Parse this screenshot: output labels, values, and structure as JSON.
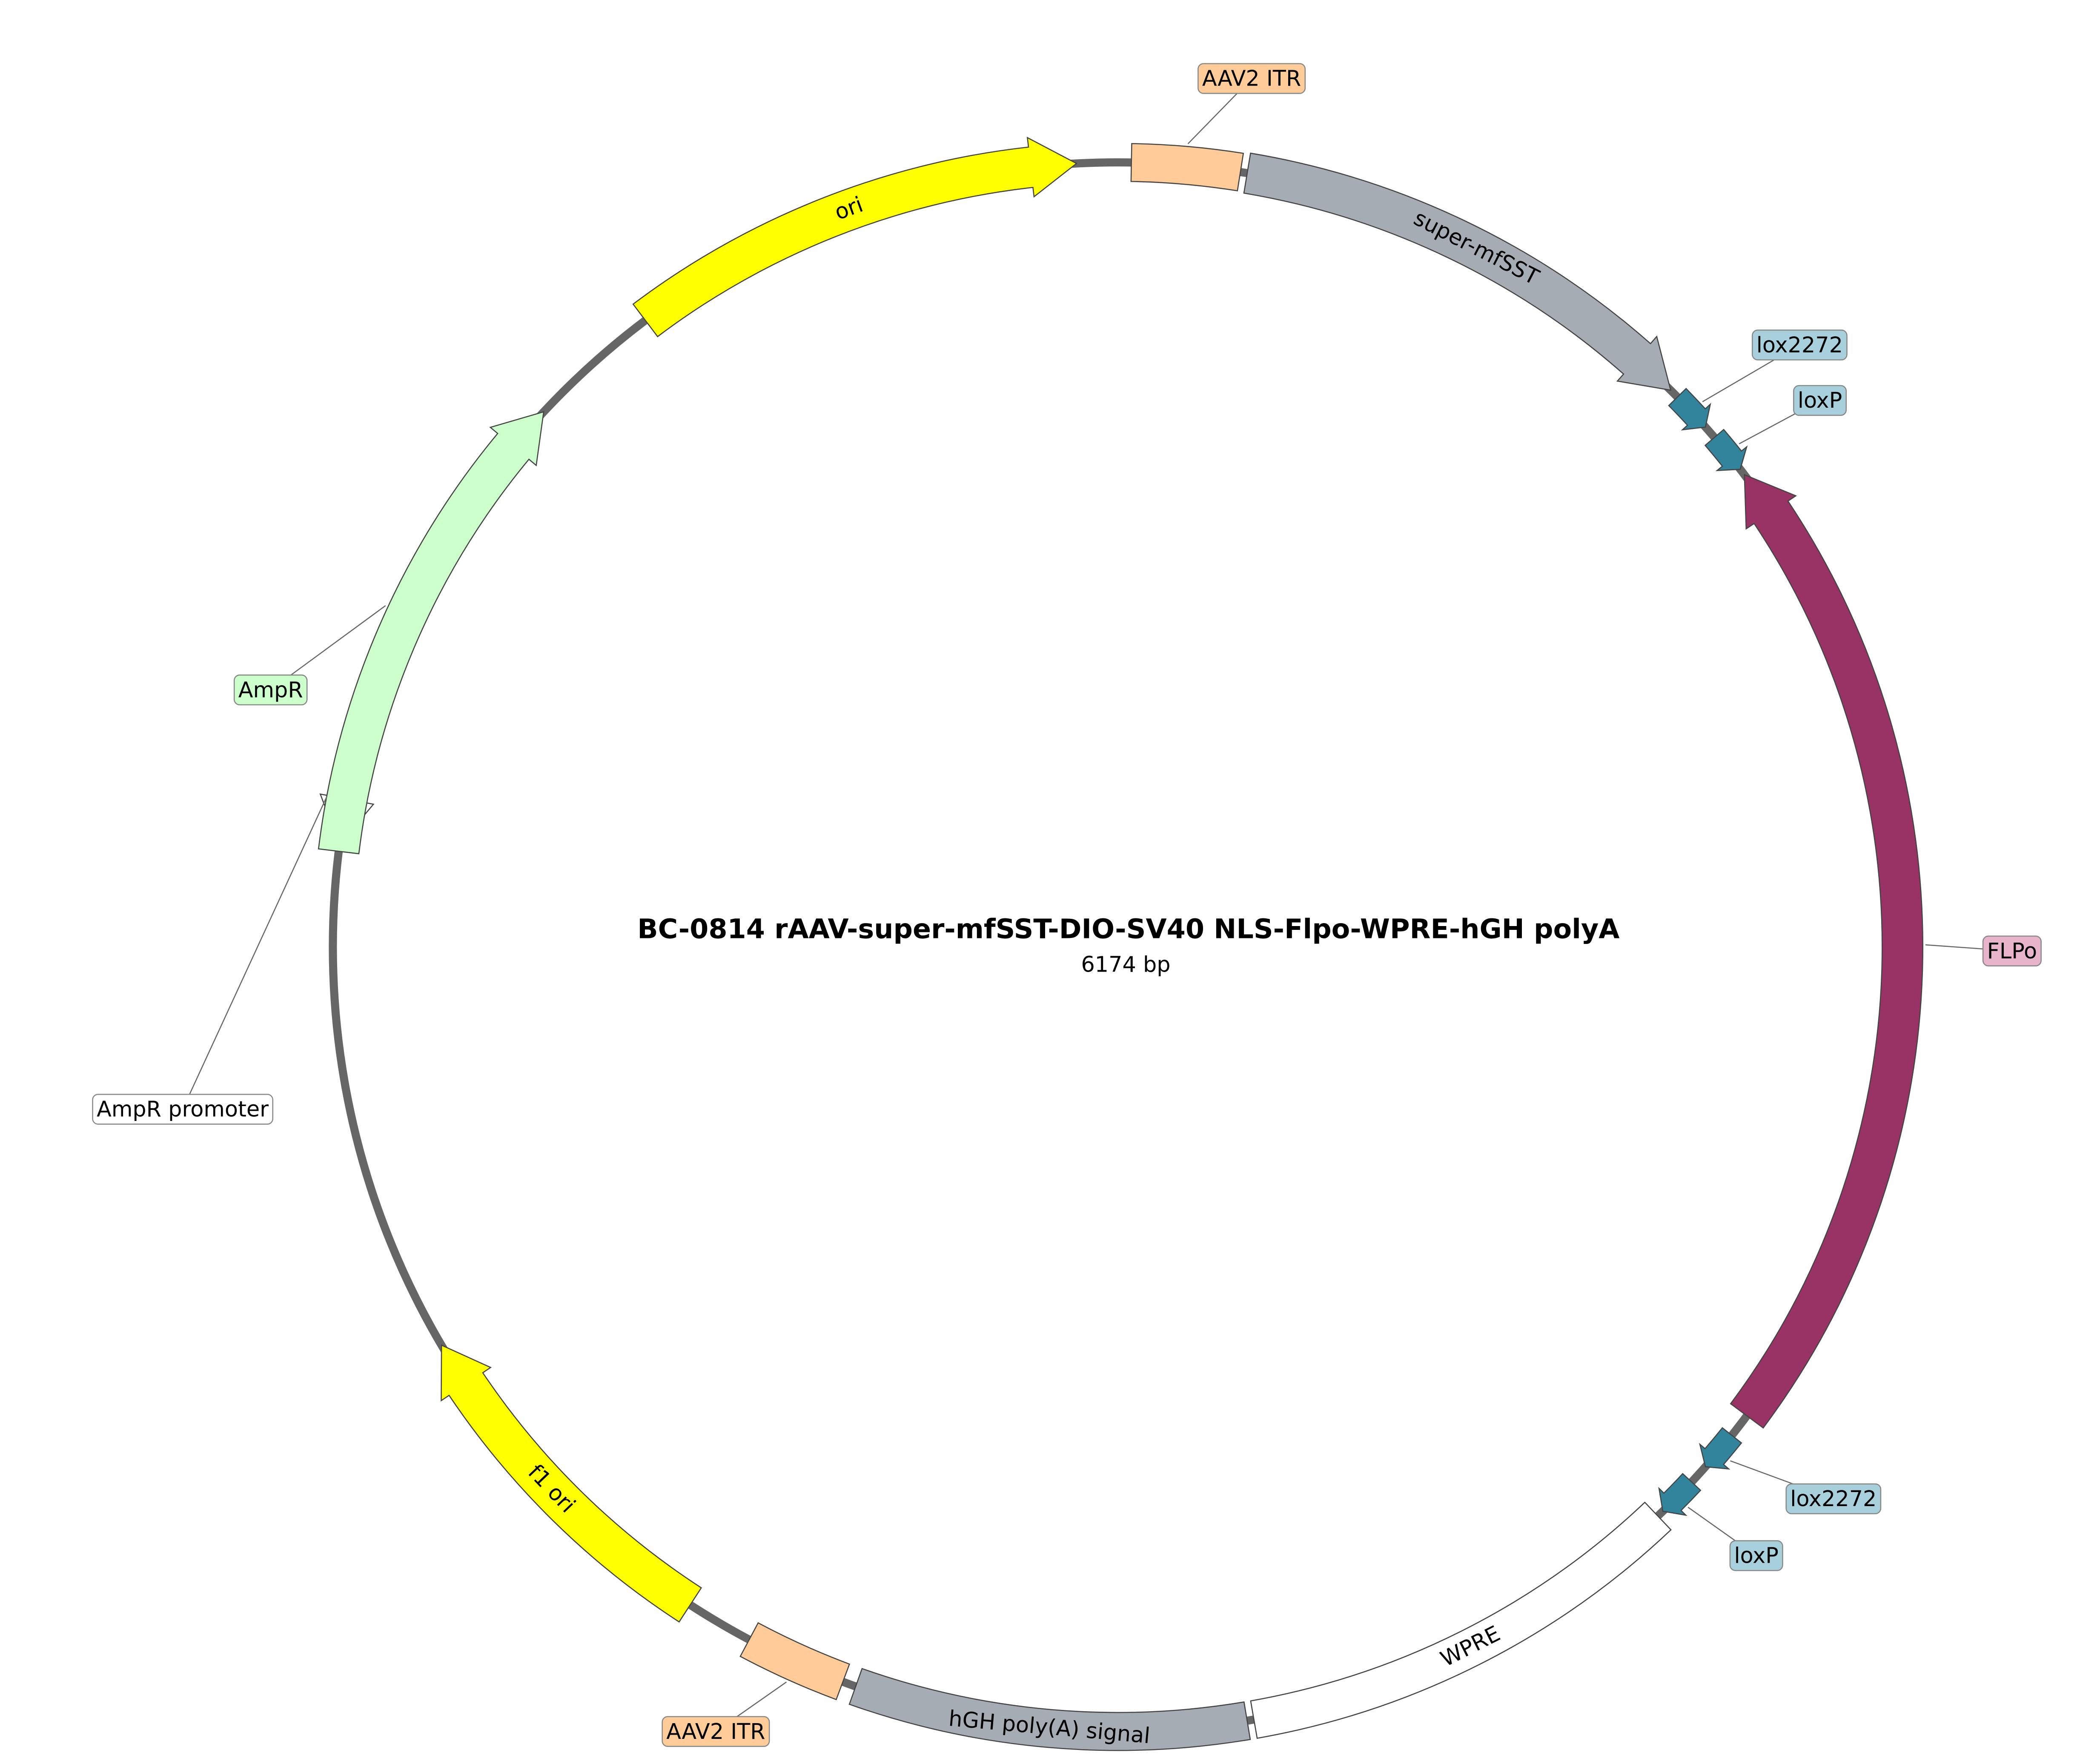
{
  "title": "BC-0814   rAAV-super-mfSST-DIO-SV40 NLS-Flpo-WPRE-hGH polyA",
  "subtitle": "6174 bp",
  "features": [
    {
      "label": "ori",
      "color": "#ffff00"
    },
    {
      "label": "AAV2 ITR",
      "color": "#ffcc99"
    },
    {
      "label": "super-mfSST",
      "color": "#a6acb3"
    },
    {
      "label": "lox2272",
      "color": "#31849b"
    },
    {
      "label": "loxP",
      "color": "#31849b"
    },
    {
      "label": "FLPo",
      "color": "#993366"
    },
    {
      "label": "lox2272",
      "color": "#31849b"
    },
    {
      "label": "loxP",
      "color": "#31849b"
    },
    {
      "label": "WPRE",
      "color": "#ffffff"
    },
    {
      "label": "hGH poly(A) signal",
      "color": "#a6acb3"
    },
    {
      "label": "AAV2 ITR",
      "color": "#ffcc99"
    },
    {
      "label": "f1 ori",
      "color": "#ffff00"
    },
    {
      "label": "AmpR promoter",
      "color": "#ffffff"
    },
    {
      "label": "AmpR",
      "color": "#ccffcc"
    }
  ]
}
